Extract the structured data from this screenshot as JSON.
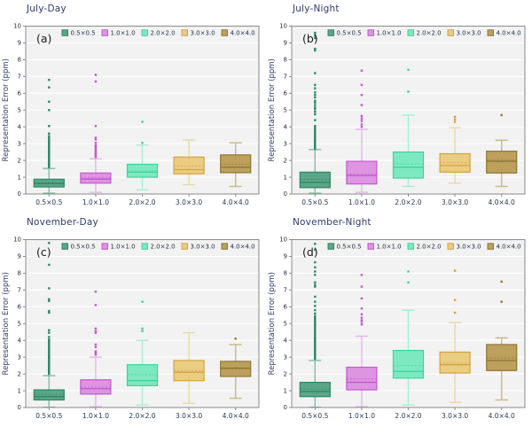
{
  "style": {
    "plot_bg": "#f2f2f2",
    "grid_color": "#ffffff",
    "spine_color": "#8a8a8a",
    "title_color": "#2e3d6b",
    "tick_color": "#1f2940",
    "legend_text_color": "#1c2b4a",
    "panel_label_color": "#1a1a1a"
  },
  "chart_data": {
    "type": "boxplot",
    "layout": "2x2-grid",
    "grid": true,
    "legend_position": "top-inside",
    "ylabel": "Representation Error (ppm)",
    "ylim": [
      0,
      10
    ],
    "y_ticks": [
      0,
      1,
      2,
      3,
      4,
      5,
      6,
      7,
      8,
      9,
      10
    ],
    "categories": [
      "0.5×0.5",
      "1.0×1.0",
      "2.0×2.0",
      "3.0×3.0",
      "4.0×4.0"
    ],
    "series_colors": [
      {
        "name": "0.5×0.5",
        "fill": "#5BA688",
        "stroke": "#2E8566",
        "whisker": "#7FBFA4"
      },
      {
        "name": "1.0×1.0",
        "fill": "#DD95E2",
        "stroke": "#C158CC",
        "whisker": "#E6B5EA"
      },
      {
        "name": "2.0×2.0",
        "fill": "#7DE9C0",
        "stroke": "#3DD49D",
        "whisker": "#A8EDD5"
      },
      {
        "name": "3.0×3.0",
        "fill": "#EBCC83",
        "stroke": "#D2A440",
        "whisker": "#EBD9A2"
      },
      {
        "name": "4.0×4.0",
        "fill": "#BCA05C",
        "stroke": "#8E7737",
        "whisker": "#C9B87E"
      }
    ],
    "panels": [
      {
        "id": "a",
        "label": "(a)",
        "title": "July-Day",
        "boxes": [
          {
            "low": 0.05,
            "q1": 0.42,
            "median": 0.62,
            "mean": 0.68,
            "q3": 0.88,
            "high": 1.52,
            "outliers": [
              6.8,
              6.35,
              5.5,
              5.0,
              4.05,
              3.6,
              3.45,
              3.35,
              3.25,
              3.15,
              3.05,
              3.0,
              2.9,
              2.85,
              2.75,
              2.7,
              2.6,
              2.55,
              2.5,
              2.45,
              2.4,
              2.35,
              2.3,
              2.25,
              2.2,
              2.15,
              2.1,
              2.05,
              2.0,
              1.95,
              1.9,
              1.85,
              1.8,
              1.75,
              1.7,
              1.65,
              1.6
            ]
          },
          {
            "low": 0.1,
            "q1": 0.65,
            "median": 0.88,
            "mean": 0.97,
            "q3": 1.25,
            "high": 2.1,
            "outliers": [
              7.1,
              6.7,
              4.05,
              3.35,
              3.25,
              3.05,
              2.9,
              2.8,
              2.7,
              2.6,
              2.5,
              2.45,
              2.35,
              2.3,
              2.2
            ]
          },
          {
            "low": 0.25,
            "q1": 1.0,
            "median": 1.3,
            "mean": 1.38,
            "q3": 1.77,
            "high": 2.92,
            "outliers": [
              4.3,
              3.05
            ]
          },
          {
            "low": 0.55,
            "q1": 1.2,
            "median": 1.45,
            "mean": 1.67,
            "q3": 2.2,
            "high": 3.22,
            "outliers": []
          },
          {
            "low": 0.45,
            "q1": 1.27,
            "median": 1.6,
            "mean": 1.76,
            "q3": 2.33,
            "high": 3.05,
            "outliers": []
          }
        ]
      },
      {
        "id": "b",
        "label": "(b)",
        "title": "July-Night",
        "boxes": [
          {
            "low": 0.05,
            "q1": 0.38,
            "median": 0.7,
            "mean": 0.88,
            "q3": 1.3,
            "high": 2.65,
            "outliers": [
              9.6,
              9.45,
              9.3,
              8.65,
              8.55,
              7.2,
              6.5,
              6.3,
              6.05,
              5.9,
              5.75,
              5.55,
              5.45,
              5.3,
              5.15,
              5.05,
              4.9,
              4.75,
              4.4,
              4.05,
              3.95,
              3.85,
              3.75,
              3.65,
              3.6,
              3.5,
              3.45,
              3.35,
              3.3,
              3.2,
              3.15,
              3.05,
              3.0,
              2.95,
              2.9,
              2.85,
              2.8,
              2.75,
              2.7
            ]
          },
          {
            "low": 0.1,
            "q1": 0.6,
            "median": 1.1,
            "mean": 1.18,
            "q3": 1.95,
            "high": 3.85,
            "outliers": [
              7.35,
              6.5,
              5.9,
              5.3,
              4.65,
              4.5,
              4.35,
              4.15,
              4.0
            ]
          },
          {
            "low": 0.45,
            "q1": 0.95,
            "median": 1.6,
            "mean": 1.78,
            "q3": 2.5,
            "high": 4.7,
            "outliers": [
              7.4,
              6.1
            ]
          },
          {
            "low": 0.65,
            "q1": 1.3,
            "median": 1.7,
            "mean": 1.86,
            "q3": 2.4,
            "high": 3.95,
            "outliers": [
              4.6,
              4.45,
              4.3
            ]
          },
          {
            "low": 0.45,
            "q1": 1.25,
            "median": 1.95,
            "mean": 2.02,
            "q3": 2.55,
            "high": 3.2,
            "outliers": [
              4.7
            ]
          }
        ]
      },
      {
        "id": "c",
        "label": "(c)",
        "title": "November-Day",
        "boxes": [
          {
            "low": 0.02,
            "q1": 0.45,
            "median": 0.65,
            "mean": 0.78,
            "q3": 1.05,
            "high": 1.9,
            "outliers": [
              9.8,
              8.5,
              7.1,
              6.45,
              6.35,
              5.75,
              5.65,
              4.6,
              4.45,
              4.2,
              4.05,
              3.95,
              3.85,
              3.75,
              3.65,
              3.55,
              3.45,
              3.4,
              3.3,
              3.25,
              3.15,
              3.1,
              3.05,
              3.0,
              2.95,
              2.9,
              2.8,
              2.75,
              2.7,
              2.6,
              2.55,
              2.5,
              2.45,
              2.4,
              2.35,
              2.3,
              2.25,
              2.2,
              2.15,
              2.1,
              2.05,
              2.0
            ]
          },
          {
            "low": 0.05,
            "q1": 0.8,
            "median": 1.12,
            "mean": 1.22,
            "q3": 1.65,
            "high": 3.0,
            "outliers": [
              6.9,
              6.1,
              4.7,
              4.55,
              4.45,
              3.75,
              3.6,
              3.35,
              3.25,
              3.15
            ]
          },
          {
            "low": 0.15,
            "q1": 1.3,
            "median": 1.6,
            "mean": 1.95,
            "q3": 2.55,
            "high": 4.0,
            "outliers": [
              6.3,
              4.7,
              4.55
            ]
          },
          {
            "low": 0.25,
            "q1": 1.6,
            "median": 2.1,
            "mean": 2.2,
            "q3": 2.8,
            "high": 4.45,
            "outliers": []
          },
          {
            "low": 0.55,
            "q1": 1.85,
            "median": 2.35,
            "mean": 2.3,
            "q3": 2.75,
            "high": 3.75,
            "outliers": [
              4.1
            ]
          }
        ]
      },
      {
        "id": "d",
        "label": "(d)",
        "title": "November-Night",
        "boxes": [
          {
            "low": 0.02,
            "q1": 0.65,
            "median": 0.95,
            "mean": 1.1,
            "q3": 1.5,
            "high": 2.8,
            "outliers": [
              9.75,
              9.4,
              8.65,
              8.35,
              8.1,
              7.9,
              7.45,
              7.3,
              7.2,
              6.6,
              6.3,
              6.05,
              5.8,
              5.6,
              5.45,
              5.35,
              5.25,
              5.15,
              5.05,
              4.95,
              4.85,
              4.75,
              4.65,
              4.55,
              4.45,
              4.4,
              4.3,
              4.25,
              4.15,
              4.1,
              4.0,
              3.95,
              3.9,
              3.8,
              3.75,
              3.65,
              3.6,
              3.5,
              3.45,
              3.4,
              3.3,
              3.25,
              3.2,
              3.1,
              3.05,
              3.0,
              2.95,
              2.9
            ]
          },
          {
            "low": 0.05,
            "q1": 1.05,
            "median": 1.5,
            "mean": 1.7,
            "q3": 2.4,
            "high": 4.25,
            "outliers": [
              7.9,
              7.2,
              6.5,
              5.9,
              5.55,
              5.35,
              5.2,
              5.1,
              4.95
            ]
          },
          {
            "low": 0.15,
            "q1": 1.75,
            "median": 2.15,
            "mean": 2.5,
            "q3": 3.4,
            "high": 5.8,
            "outliers": [
              8.1,
              7.45
            ]
          },
          {
            "low": 0.3,
            "q1": 2.05,
            "median": 2.55,
            "mean": 2.65,
            "q3": 3.3,
            "high": 5.05,
            "outliers": [
              8.15,
              6.4,
              5.65
            ]
          },
          {
            "low": 0.45,
            "q1": 2.2,
            "median": 2.8,
            "mean": 2.95,
            "q3": 3.75,
            "high": 4.15,
            "outliers": [
              7.5,
              6.3
            ]
          }
        ]
      }
    ]
  }
}
